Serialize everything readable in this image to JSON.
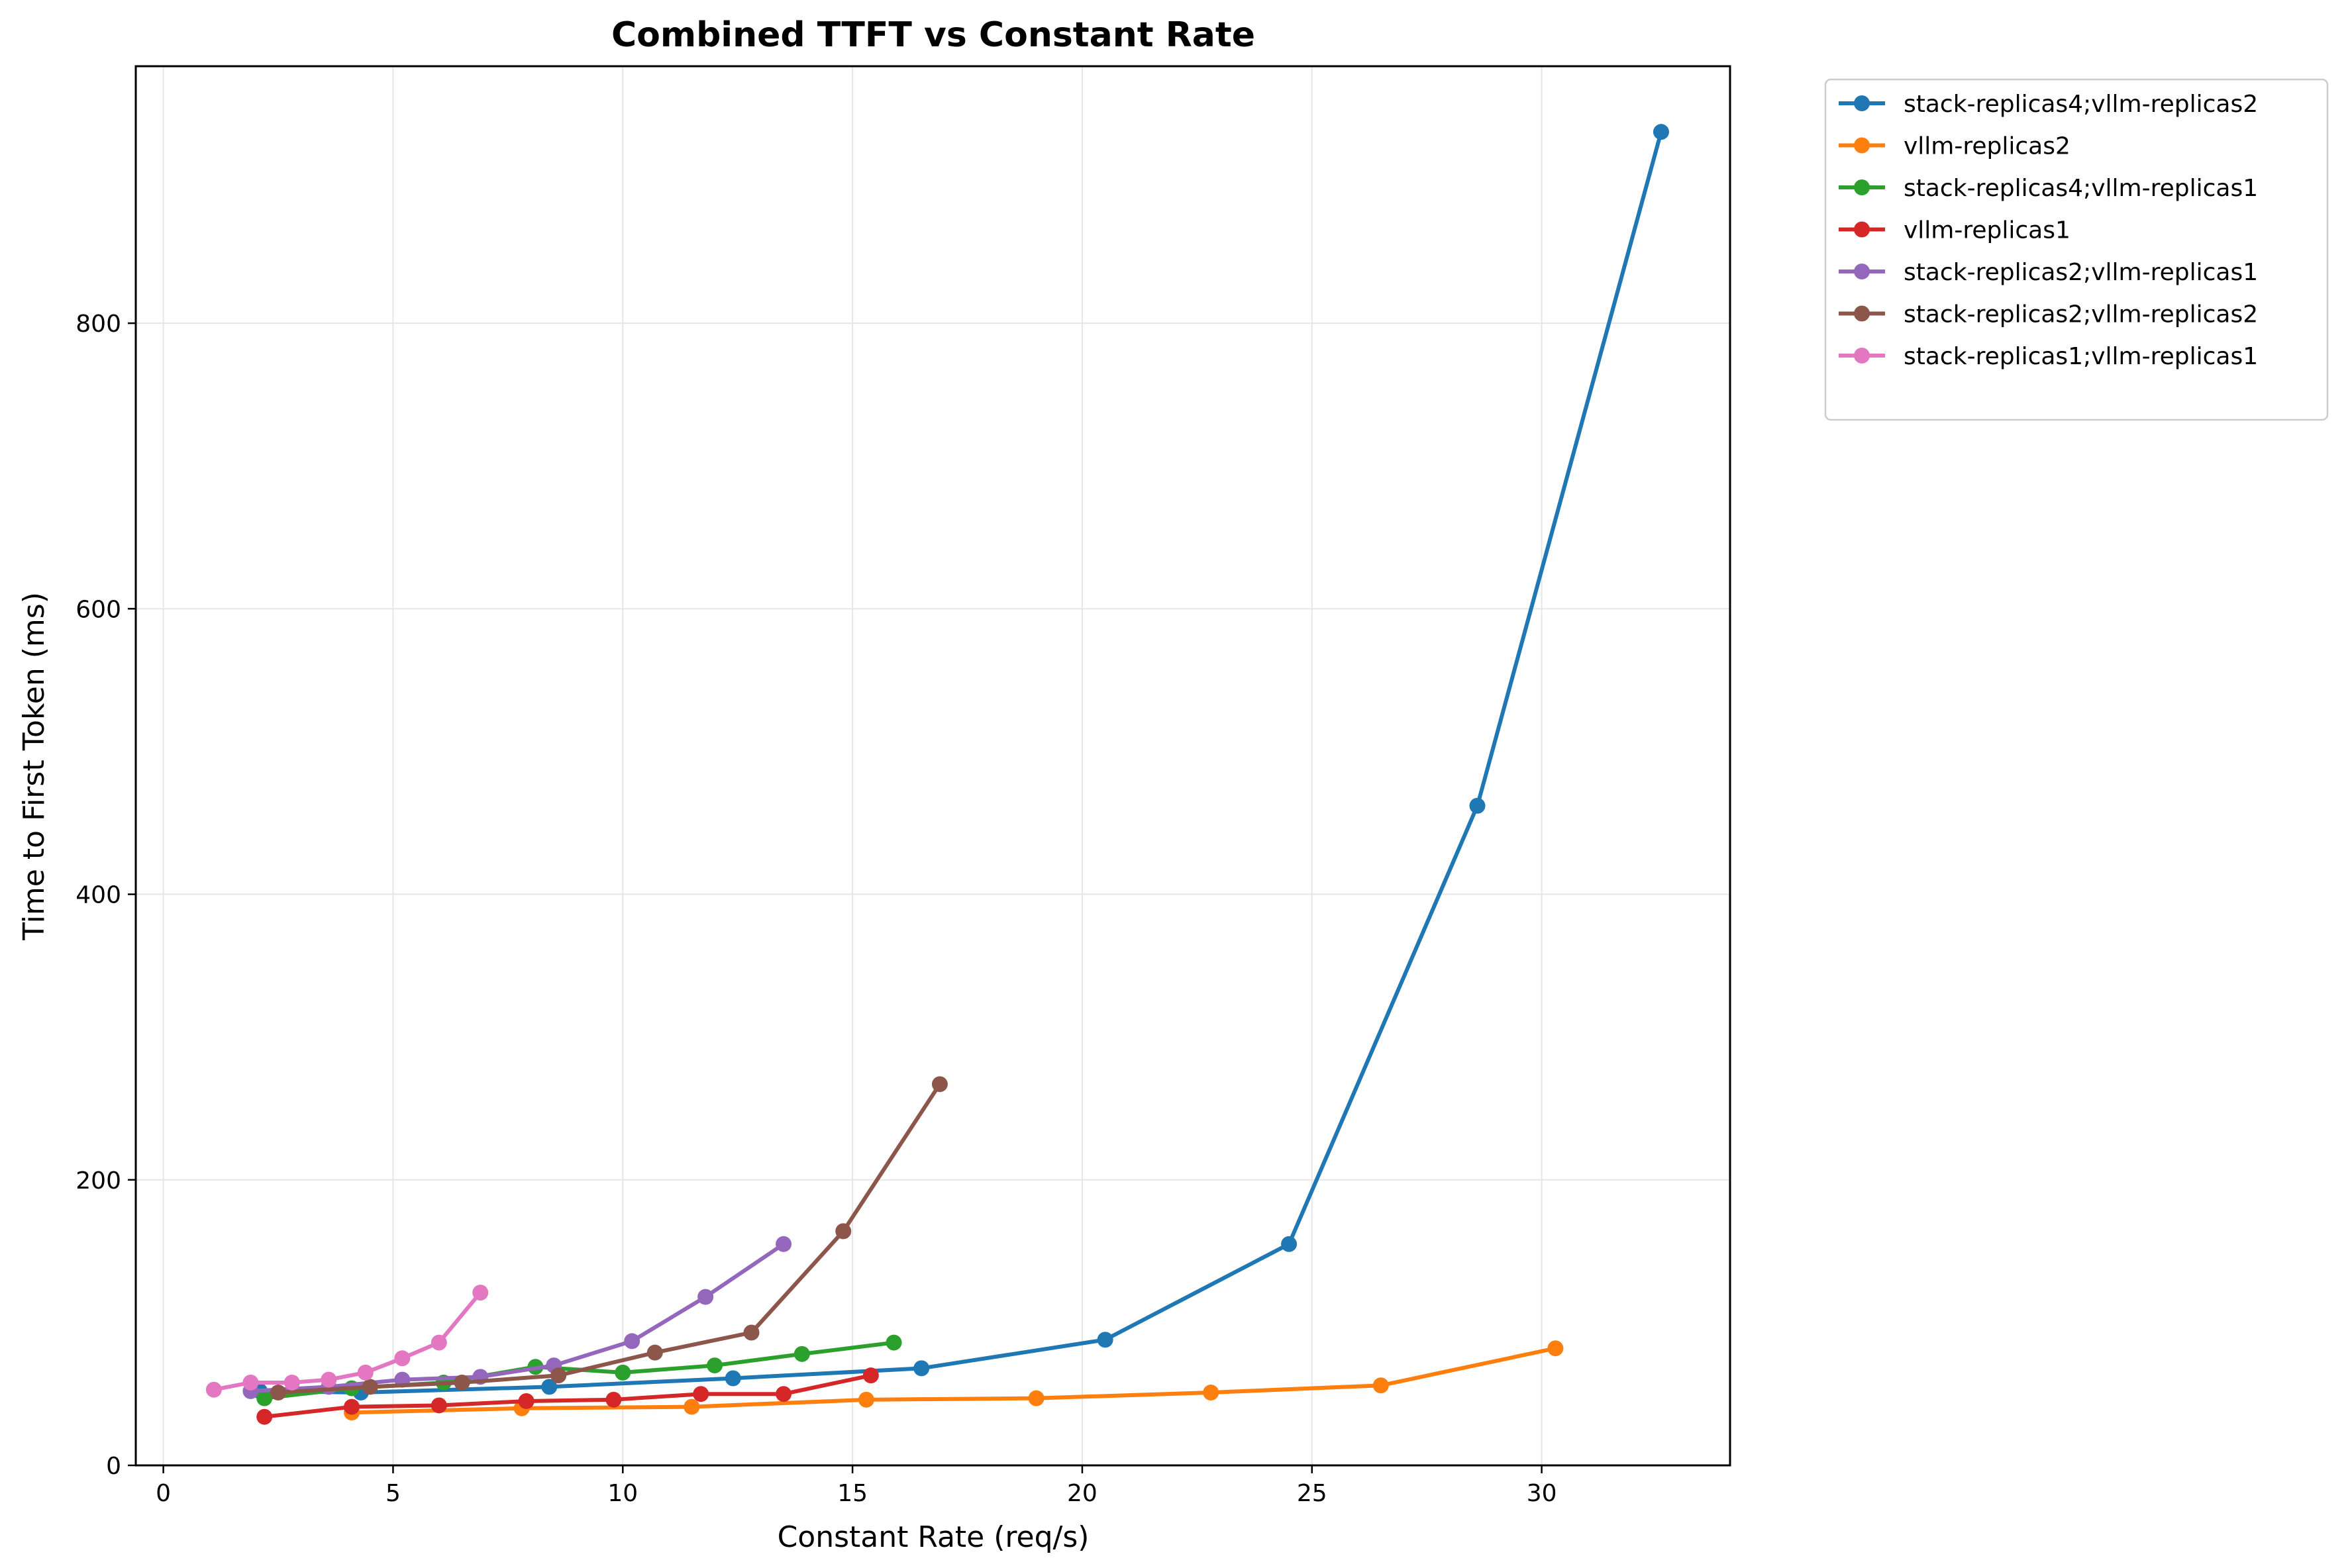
{
  "chart_data": {
    "type": "line",
    "title": "Combined TTFT vs Constant Rate",
    "xlabel": "Constant Rate (req/s)",
    "ylabel": "Time to First Token (ms)",
    "xlim": [
      -0.6,
      34.1
    ],
    "ylim": [
      0,
      980
    ],
    "xticks": [
      0,
      5,
      10,
      15,
      20,
      25,
      30
    ],
    "yticks": [
      0,
      200,
      400,
      600,
      800
    ],
    "grid": true,
    "legend_position": "outside top-right",
    "series": [
      {
        "name": "stack-replicas4;vllm-replicas2",
        "color": "#1f77b4",
        "x": [
          2.1,
          4.3,
          8.4,
          12.4,
          16.5,
          20.5,
          24.5,
          28.6,
          32.6
        ],
        "y": [
          52,
          51,
          55,
          61,
          68,
          88,
          155,
          462,
          934
        ]
      },
      {
        "name": "vllm-replicas2",
        "color": "#ff7f0e",
        "x": [
          4.1,
          7.8,
          11.5,
          15.3,
          19.0,
          22.8,
          26.5,
          30.3
        ],
        "y": [
          37,
          40,
          41,
          46,
          47,
          51,
          56,
          82
        ]
      },
      {
        "name": "stack-replicas4;vllm-replicas1",
        "color": "#2ca02c",
        "x": [
          2.2,
          4.1,
          6.1,
          8.1,
          10.0,
          12.0,
          13.9,
          15.9
        ],
        "y": [
          47,
          54,
          58,
          69,
          65,
          70,
          78,
          86
        ]
      },
      {
        "name": "vllm-replicas1",
        "color": "#d62728",
        "x": [
          2.2,
          4.1,
          6.0,
          7.9,
          9.8,
          11.7,
          13.5,
          15.4
        ],
        "y": [
          34,
          41,
          42,
          45,
          46,
          50,
          50,
          63
        ]
      },
      {
        "name": "stack-replicas2;vllm-replicas1",
        "color": "#9467bd",
        "x": [
          1.9,
          3.6,
          5.2,
          6.9,
          8.5,
          10.2,
          11.8,
          13.5
        ],
        "y": [
          52,
          55,
          60,
          62,
          70,
          87,
          118,
          155
        ]
      },
      {
        "name": "stack-replicas2;vllm-replicas2",
        "color": "#8c564b",
        "x": [
          2.5,
          4.5,
          6.5,
          8.6,
          10.7,
          12.8,
          14.8,
          16.9
        ],
        "y": [
          51,
          55,
          58,
          63,
          79,
          93,
          164,
          267
        ]
      },
      {
        "name": "stack-replicas1;vllm-replicas1",
        "color": "#e377c2",
        "x": [
          1.1,
          1.9,
          2.8,
          3.6,
          4.4,
          5.2,
          6.0,
          6.9
        ],
        "y": [
          53,
          58,
          58,
          60,
          65,
          75,
          86,
          121
        ]
      }
    ]
  }
}
